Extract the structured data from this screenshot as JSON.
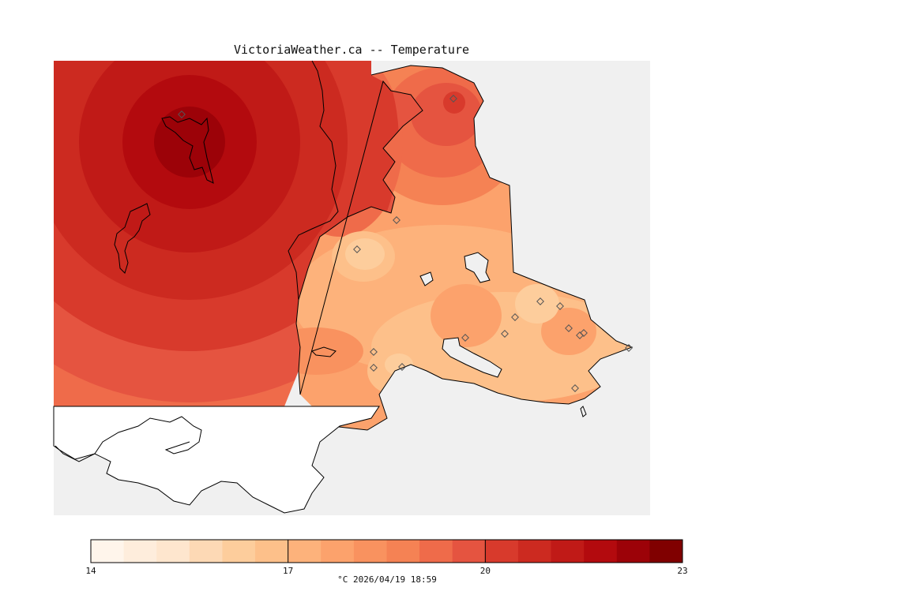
{
  "title": "VictoriaWeather.ca -- Temperature",
  "legend": {
    "min": 14,
    "max": 23,
    "steps": 18,
    "ticks": [
      {
        "value": 14,
        "label": "14"
      },
      {
        "value": 17,
        "label": "17"
      },
      {
        "value": 20,
        "label": "20"
      },
      {
        "value": 23,
        "label": "23"
      }
    ],
    "unit": "°C",
    "timestamp": "2026/04/19 18:59",
    "caption": "°C  2026/04/19 18:59",
    "colors": [
      "#fff5eb",
      "#feeddc",
      "#fee6ce",
      "#fdd9b5",
      "#fdcd9c",
      "#fdc08a",
      "#fdb27b",
      "#fca26c",
      "#f9925f",
      "#f58254",
      "#ef6b4a",
      "#e55440",
      "#d83a2c",
      "#cc2a20",
      "#c01a17",
      "#b30a0e",
      "#9c0208",
      "#800000"
    ]
  },
  "colors": {
    "sea": "#f0f0f0",
    "land_unsampled": "#ffffff",
    "coastline": "#000000",
    "station_marker": "#555555"
  }
}
